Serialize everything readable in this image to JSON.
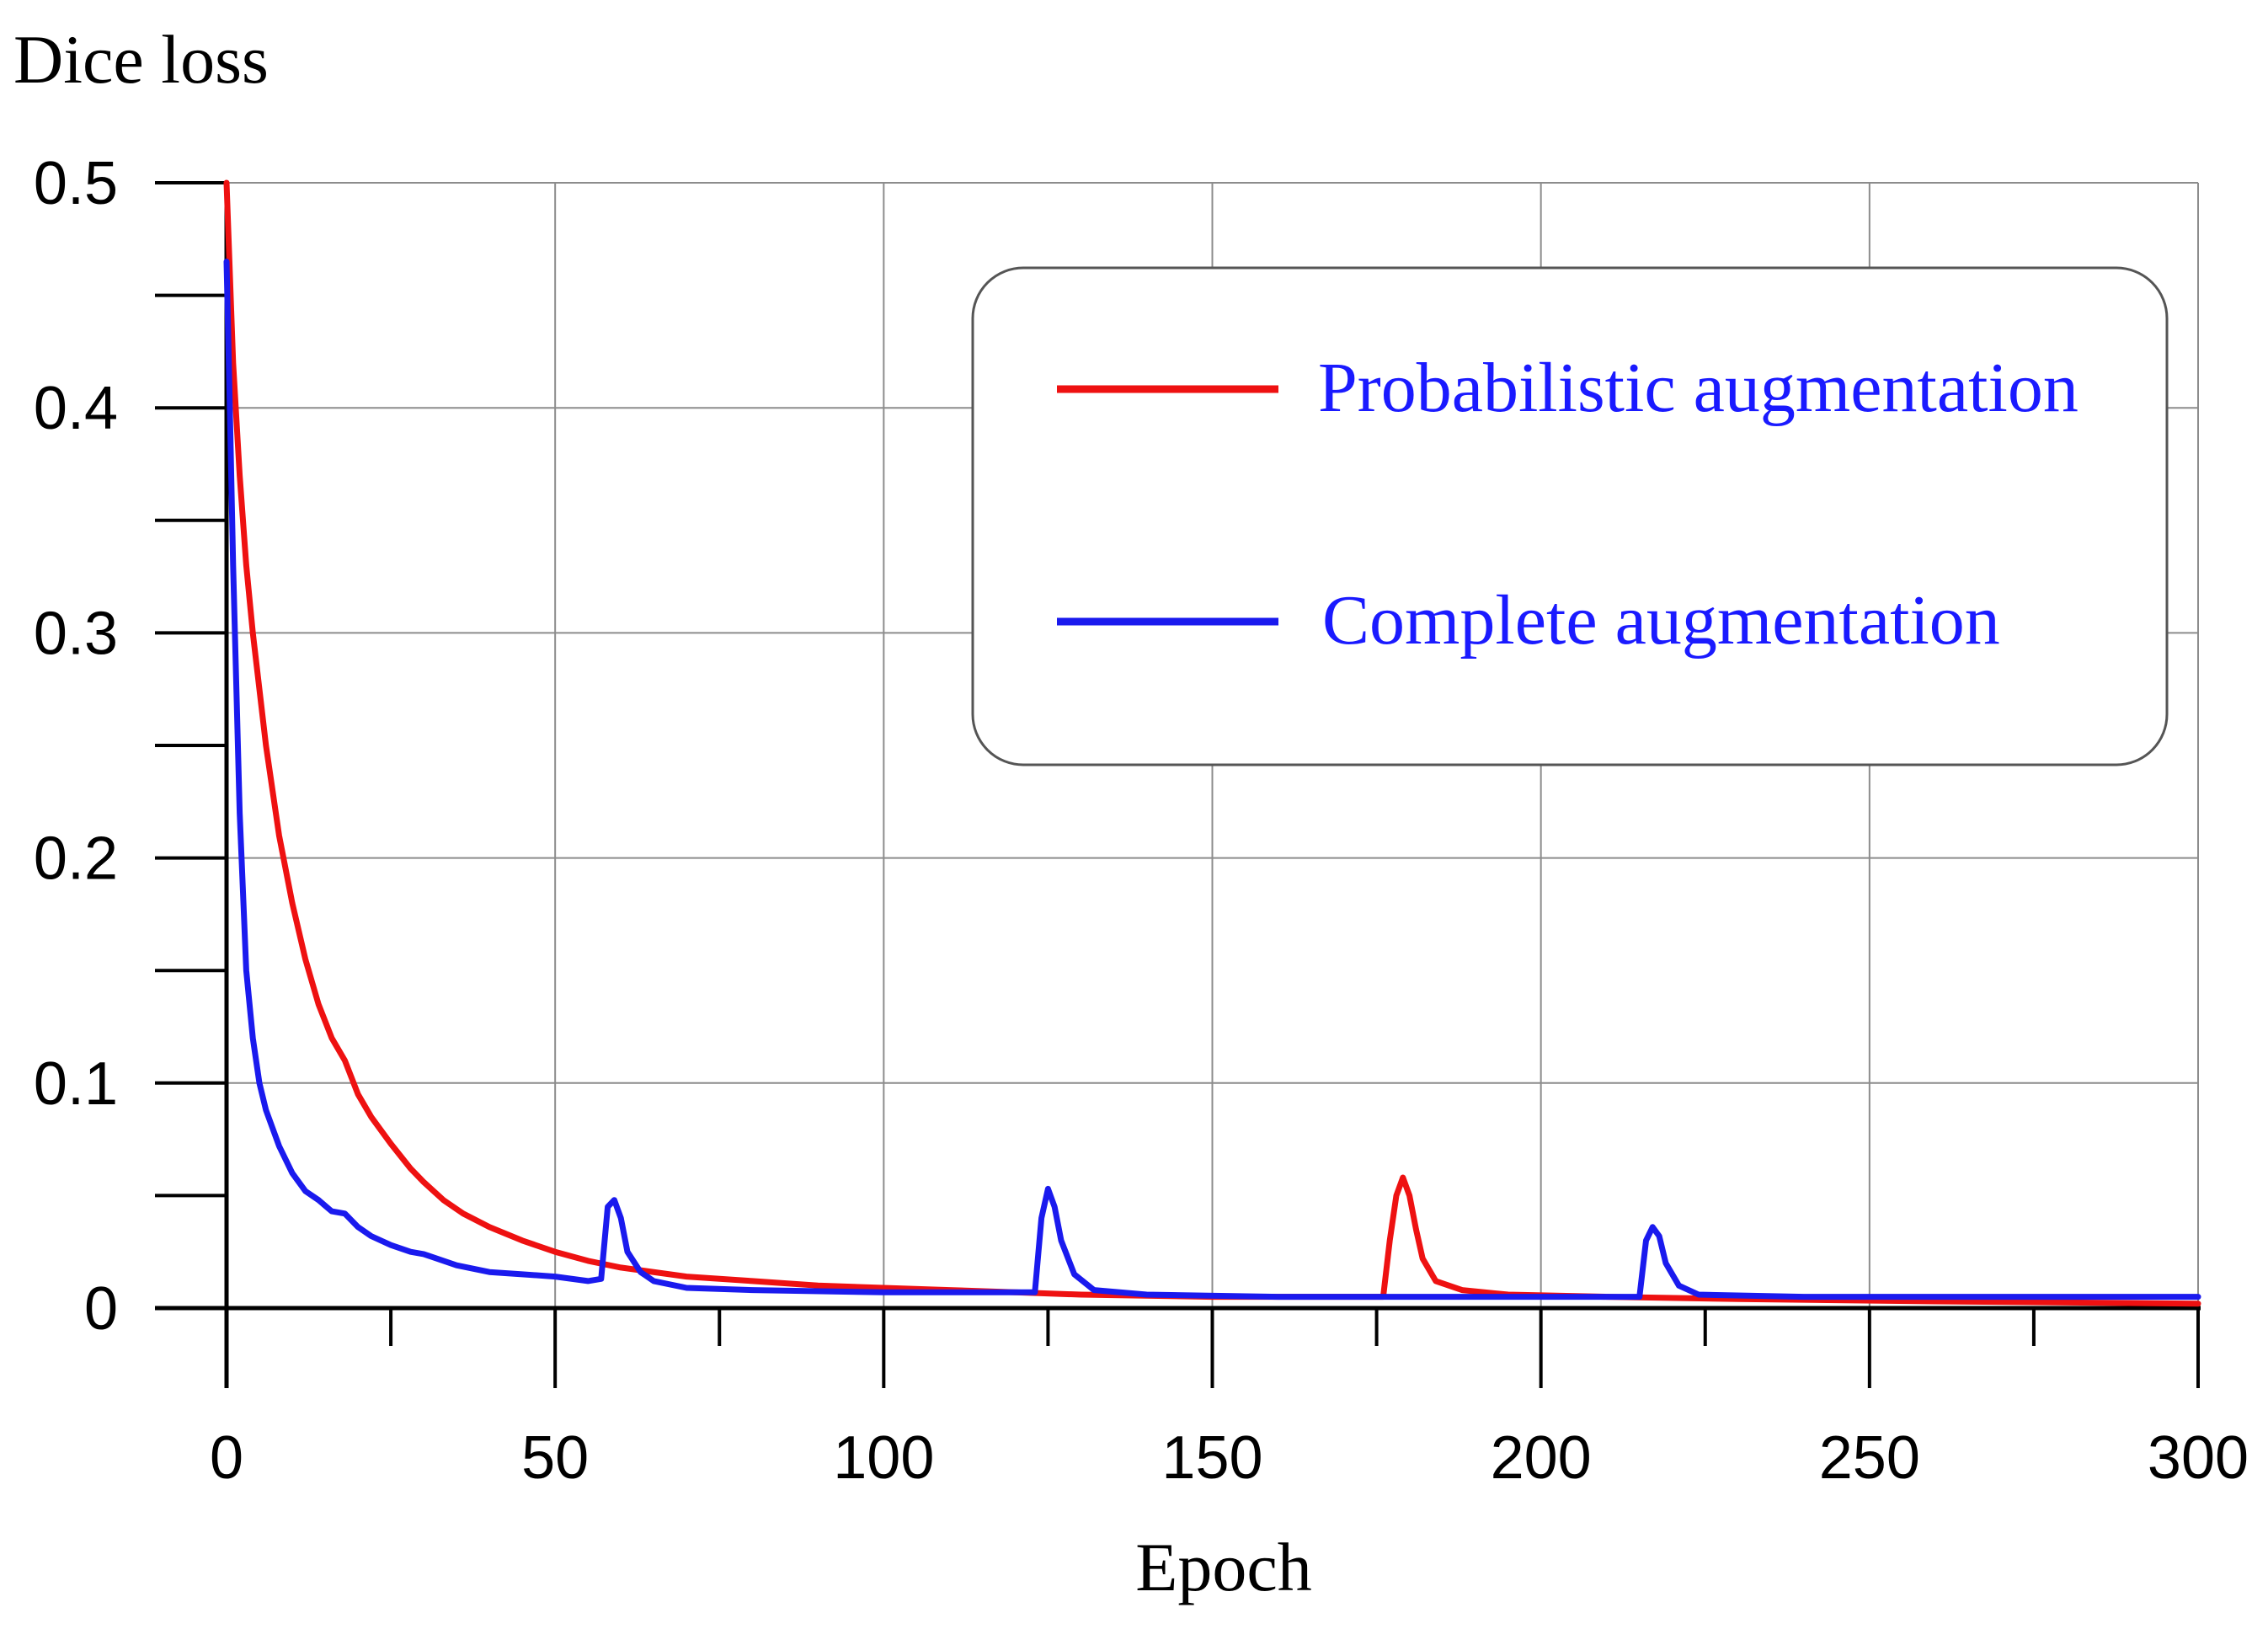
{
  "chart_data": {
    "type": "line",
    "ylabel": "Dice loss",
    "xlabel": "Epoch",
    "xlim": [
      0,
      300
    ],
    "ylim": [
      0,
      0.5
    ],
    "x_ticks": [
      0,
      50,
      100,
      150,
      200,
      250,
      300
    ],
    "x_tick_labels": [
      "0",
      "50",
      "100",
      "150",
      "200",
      "250",
      "300"
    ],
    "y_ticks": [
      0,
      0.1,
      0.2,
      0.3,
      0.4,
      0.5
    ],
    "y_tick_labels": [
      "0",
      "0.1",
      "0.2",
      "0.3",
      "0.4",
      "0.5"
    ],
    "grid": true,
    "legend_position": "top-right",
    "legend_text_color": "#1a1aff",
    "series": [
      {
        "name": "Probabilistic augmentation",
        "color": "#ee1111",
        "points": [
          [
            0,
            0.5
          ],
          [
            1,
            0.42
          ],
          [
            2,
            0.37
          ],
          [
            3,
            0.33
          ],
          [
            4,
            0.3
          ],
          [
            5,
            0.275
          ],
          [
            6,
            0.25
          ],
          [
            8,
            0.21
          ],
          [
            10,
            0.18
          ],
          [
            12,
            0.155
          ],
          [
            14,
            0.135
          ],
          [
            16,
            0.12
          ],
          [
            18,
            0.11
          ],
          [
            20,
            0.095
          ],
          [
            22,
            0.085
          ],
          [
            25,
            0.073
          ],
          [
            28,
            0.062
          ],
          [
            30,
            0.056
          ],
          [
            33,
            0.048
          ],
          [
            36,
            0.042
          ],
          [
            40,
            0.036
          ],
          [
            45,
            0.03
          ],
          [
            50,
            0.025
          ],
          [
            55,
            0.021
          ],
          [
            60,
            0.018
          ],
          [
            70,
            0.014
          ],
          [
            80,
            0.012
          ],
          [
            90,
            0.01
          ],
          [
            100,
            0.009
          ],
          [
            110,
            0.008
          ],
          [
            120,
            0.007
          ],
          [
            130,
            0.006
          ],
          [
            150,
            0.005
          ],
          [
            170,
            0.005
          ],
          [
            176,
            0.005
          ],
          [
            177,
            0.03
          ],
          [
            178,
            0.05
          ],
          [
            179,
            0.058
          ],
          [
            180,
            0.05
          ],
          [
            181,
            0.035
          ],
          [
            182,
            0.022
          ],
          [
            184,
            0.012
          ],
          [
            188,
            0.008
          ],
          [
            195,
            0.006
          ],
          [
            210,
            0.005
          ],
          [
            230,
            0.004
          ],
          [
            260,
            0.003
          ],
          [
            300,
            0.002
          ]
        ]
      },
      {
        "name": "Complete augmentation",
        "color": "#1a1aee",
        "points": [
          [
            0,
            0.465
          ],
          [
            0.5,
            0.4
          ],
          [
            1,
            0.33
          ],
          [
            2,
            0.22
          ],
          [
            3,
            0.15
          ],
          [
            4,
            0.12
          ],
          [
            5,
            0.1
          ],
          [
            6,
            0.088
          ],
          [
            8,
            0.072
          ],
          [
            10,
            0.06
          ],
          [
            12,
            0.052
          ],
          [
            14,
            0.048
          ],
          [
            16,
            0.043
          ],
          [
            18,
            0.042
          ],
          [
            20,
            0.036
          ],
          [
            22,
            0.032
          ],
          [
            25,
            0.028
          ],
          [
            28,
            0.025
          ],
          [
            30,
            0.024
          ],
          [
            35,
            0.019
          ],
          [
            40,
            0.016
          ],
          [
            45,
            0.015
          ],
          [
            50,
            0.014
          ],
          [
            55,
            0.012
          ],
          [
            57,
            0.013
          ],
          [
            58,
            0.045
          ],
          [
            59,
            0.048
          ],
          [
            60,
            0.04
          ],
          [
            61,
            0.025
          ],
          [
            63,
            0.016
          ],
          [
            65,
            0.012
          ],
          [
            70,
            0.009
          ],
          [
            80,
            0.008
          ],
          [
            100,
            0.007
          ],
          [
            120,
            0.007
          ],
          [
            123,
            0.007
          ],
          [
            124,
            0.04
          ],
          [
            125,
            0.053
          ],
          [
            126,
            0.045
          ],
          [
            127,
            0.03
          ],
          [
            129,
            0.015
          ],
          [
            132,
            0.008
          ],
          [
            140,
            0.006
          ],
          [
            160,
            0.005
          ],
          [
            200,
            0.005
          ],
          [
            215,
            0.005
          ],
          [
            216,
            0.03
          ],
          [
            217,
            0.036
          ],
          [
            218,
            0.032
          ],
          [
            219,
            0.02
          ],
          [
            221,
            0.01
          ],
          [
            224,
            0.006
          ],
          [
            240,
            0.005
          ],
          [
            270,
            0.005
          ],
          [
            300,
            0.005
          ]
        ]
      }
    ]
  }
}
